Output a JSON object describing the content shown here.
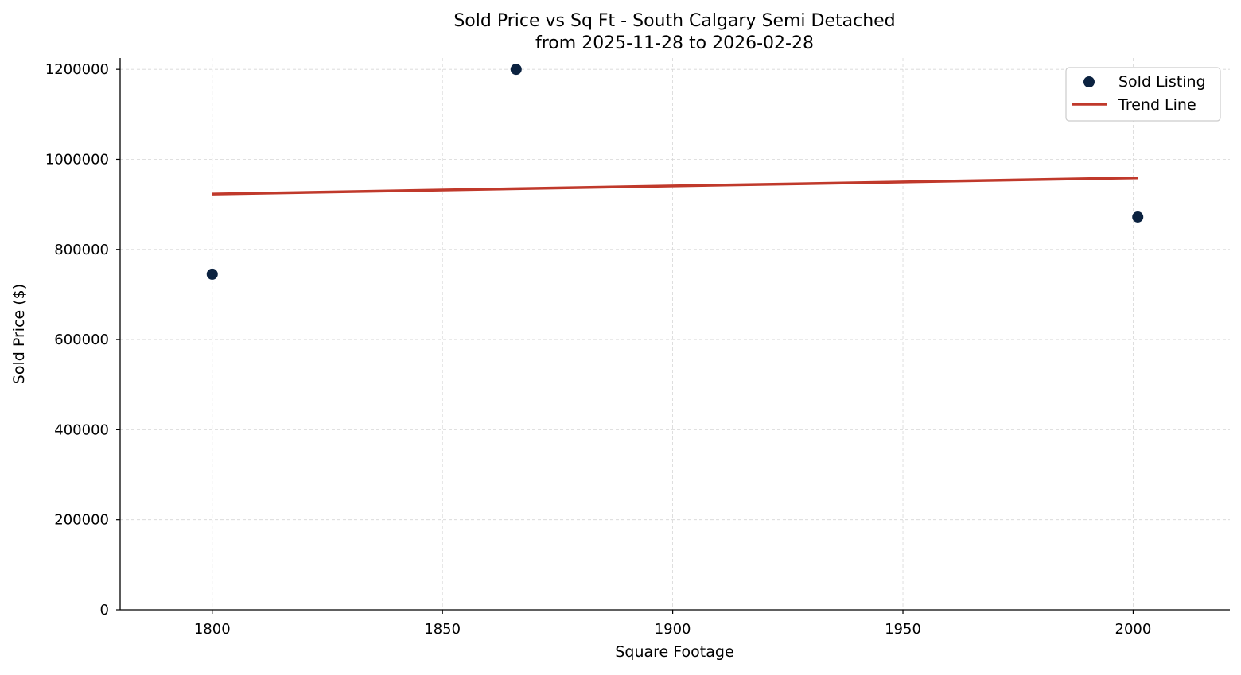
{
  "chart_data": {
    "type": "scatter",
    "title": "Sold Price vs Sq Ft - South Calgary Semi Detached",
    "subtitle": "from 2025-11-28 to 2026-02-28",
    "xlabel": "Square Footage",
    "ylabel": "Sold Price ($)",
    "xlim": [
      1780,
      2021
    ],
    "ylim": [
      0,
      1225000
    ],
    "x_ticks": [
      1800,
      1850,
      1900,
      1950,
      2000
    ],
    "y_ticks": [
      0,
      200000,
      400000,
      600000,
      800000,
      1000000,
      1200000
    ],
    "grid": true,
    "legend_position": "top-right",
    "series": [
      {
        "name": "Sold Listing",
        "type": "scatter",
        "color": "#0b2240",
        "points": [
          {
            "x": 1800,
            "y": 745000
          },
          {
            "x": 1866,
            "y": 1200000
          },
          {
            "x": 2001,
            "y": 872000
          }
        ]
      },
      {
        "name": "Trend Line",
        "type": "line",
        "color": "#c0392b",
        "points": [
          {
            "x": 1800,
            "y": 923000
          },
          {
            "x": 2001,
            "y": 959000
          }
        ]
      }
    ]
  }
}
